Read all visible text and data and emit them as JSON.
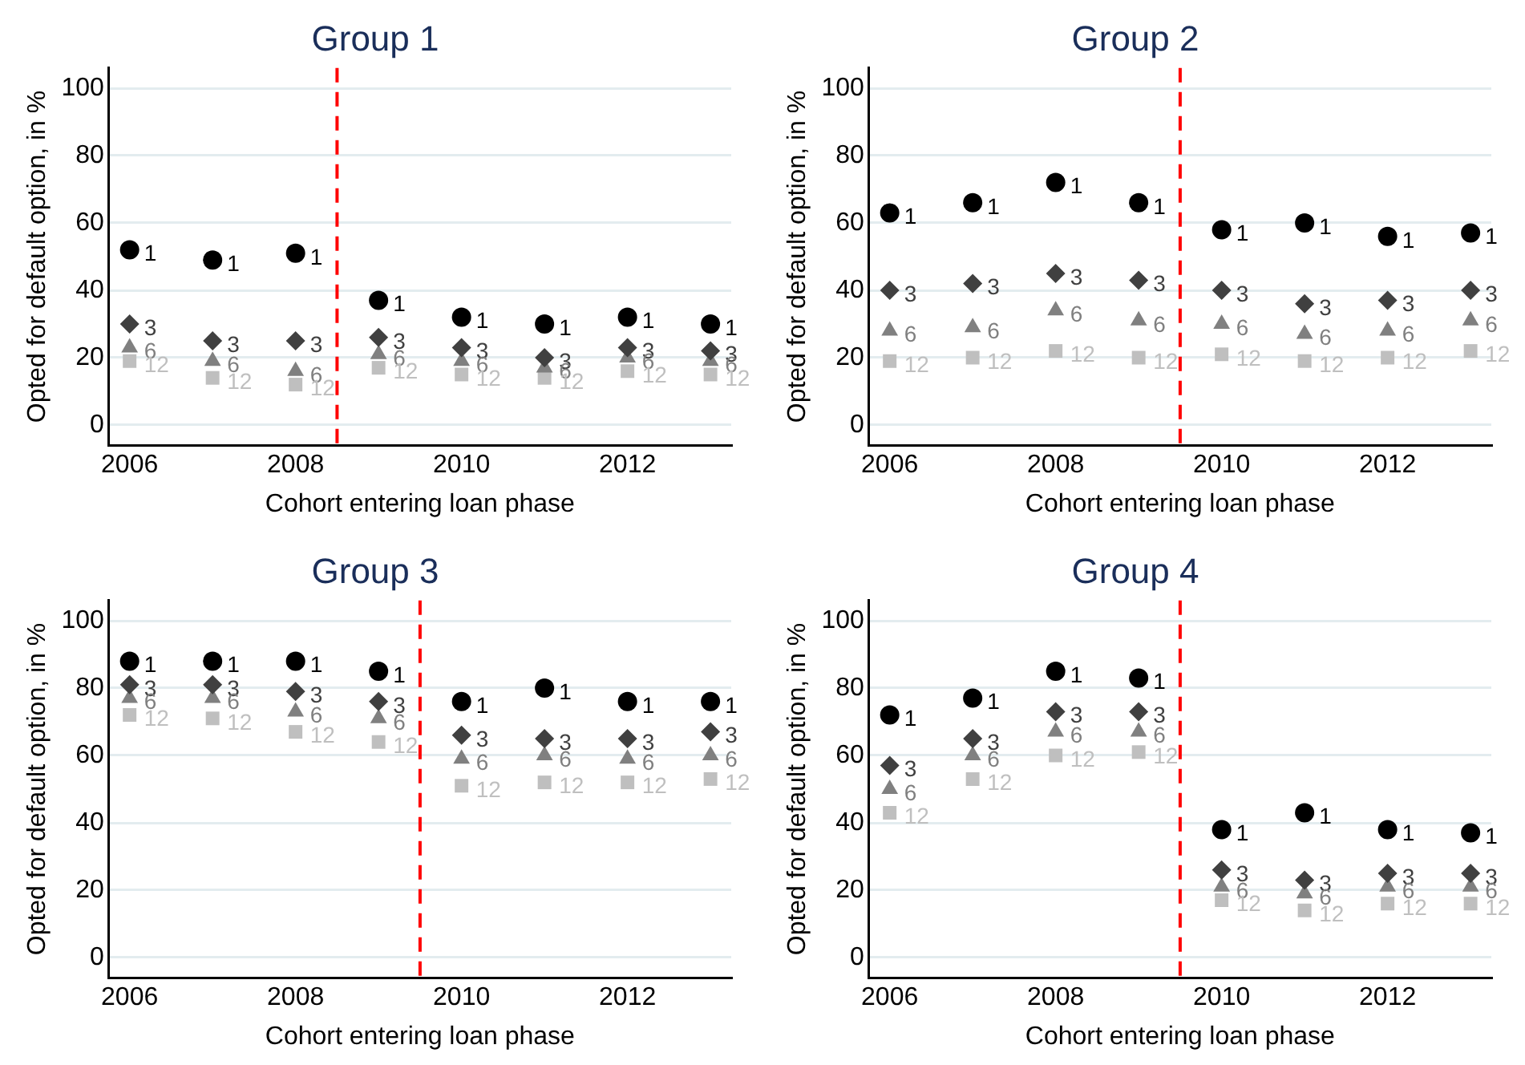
{
  "chart_data": [
    {
      "type": "scatter",
      "title": "Group 1",
      "xlabel": "Cohort entering loan phase",
      "ylabel": "Opted for default option, in %",
      "x": [
        2006,
        2007,
        2008,
        2009,
        2010,
        2011,
        2012,
        2013
      ],
      "xlim": [
        2005.75,
        2013.25
      ],
      "xticks": [
        2006,
        2008,
        2010,
        2012
      ],
      "ylim": [
        -6,
        106
      ],
      "yticks": [
        0,
        20,
        40,
        60,
        80,
        100
      ],
      "grid": "y",
      "legend": false,
      "ref_lines": [
        {
          "axis": "x",
          "value": 2008.5,
          "color": "#ff0000",
          "line_style": "dashed"
        }
      ],
      "series": [
        {
          "name": "1",
          "color": "#000000",
          "marker": "circle",
          "values": [
            52,
            49,
            51,
            37,
            32,
            30,
            32,
            30
          ]
        },
        {
          "name": "3",
          "color": "#404040",
          "marker": "diamond",
          "values": [
            30,
            25,
            25,
            26,
            23,
            20,
            23,
            22
          ]
        },
        {
          "name": "6",
          "color": "#808080",
          "marker": "triangle",
          "values": [
            23,
            19,
            16,
            21,
            19,
            17,
            20,
            19
          ]
        },
        {
          "name": "12",
          "color": "#bfbfbf",
          "marker": "square",
          "values": [
            19,
            14,
            12,
            17,
            15,
            14,
            16,
            15
          ]
        }
      ]
    },
    {
      "type": "scatter",
      "title": "Group 2",
      "xlabel": "Cohort entering loan phase",
      "ylabel": "Opted for default option, in %",
      "x": [
        2006,
        2007,
        2008,
        2009,
        2010,
        2011,
        2012,
        2013
      ],
      "xlim": [
        2005.75,
        2013.25
      ],
      "xticks": [
        2006,
        2008,
        2010,
        2012
      ],
      "ylim": [
        -6,
        106
      ],
      "yticks": [
        0,
        20,
        40,
        60,
        80,
        100
      ],
      "grid": "y",
      "legend": false,
      "ref_lines": [
        {
          "axis": "x",
          "value": 2009.5,
          "color": "#ff0000",
          "line_style": "dashed"
        }
      ],
      "series": [
        {
          "name": "1",
          "color": "#000000",
          "marker": "circle",
          "values": [
            63,
            66,
            72,
            66,
            58,
            60,
            56,
            57
          ]
        },
        {
          "name": "3",
          "color": "#404040",
          "marker": "diamond",
          "values": [
            40,
            42,
            45,
            43,
            40,
            36,
            37,
            40
          ]
        },
        {
          "name": "6",
          "color": "#808080",
          "marker": "triangle",
          "values": [
            28,
            29,
            34,
            31,
            30,
            27,
            28,
            31
          ]
        },
        {
          "name": "12",
          "color": "#bfbfbf",
          "marker": "square",
          "values": [
            19,
            20,
            22,
            20,
            21,
            19,
            20,
            22
          ]
        }
      ]
    },
    {
      "type": "scatter",
      "title": "Group 3",
      "xlabel": "Cohort entering loan phase",
      "ylabel": "Opted for default option, in %",
      "x": [
        2006,
        2007,
        2008,
        2009,
        2010,
        2011,
        2012,
        2013
      ],
      "xlim": [
        2005.75,
        2013.25
      ],
      "xticks": [
        2006,
        2008,
        2010,
        2012
      ],
      "ylim": [
        -6,
        106
      ],
      "yticks": [
        0,
        20,
        40,
        60,
        80,
        100
      ],
      "grid": "y",
      "legend": false,
      "ref_lines": [
        {
          "axis": "x",
          "value": 2009.5,
          "color": "#ff0000",
          "line_style": "dashed"
        }
      ],
      "series": [
        {
          "name": "1",
          "color": "#000000",
          "marker": "circle",
          "values": [
            88,
            88,
            88,
            85,
            76,
            80,
            76,
            76
          ]
        },
        {
          "name": "3",
          "color": "#404040",
          "marker": "diamond",
          "values": [
            81,
            81,
            79,
            76,
            66,
            65,
            65,
            67
          ]
        },
        {
          "name": "6",
          "color": "#808080",
          "marker": "triangle",
          "values": [
            77,
            77,
            73,
            71,
            59,
            60,
            59,
            60
          ]
        },
        {
          "name": "12",
          "color": "#bfbfbf",
          "marker": "square",
          "values": [
            72,
            71,
            67,
            64,
            51,
            52,
            52,
            53
          ]
        }
      ]
    },
    {
      "type": "scatter",
      "title": "Group 4",
      "xlabel": "Cohort entering loan phase",
      "ylabel": "Opted for default option, in %",
      "x": [
        2006,
        2007,
        2008,
        2009,
        2010,
        2011,
        2012,
        2013
      ],
      "xlim": [
        2005.75,
        2013.25
      ],
      "xticks": [
        2006,
        2008,
        2010,
        2012
      ],
      "ylim": [
        -6,
        106
      ],
      "yticks": [
        0,
        20,
        40,
        60,
        80,
        100
      ],
      "grid": "y",
      "legend": false,
      "ref_lines": [
        {
          "axis": "x",
          "value": 2009.5,
          "color": "#ff0000",
          "line_style": "dashed"
        }
      ],
      "series": [
        {
          "name": "1",
          "color": "#000000",
          "marker": "circle",
          "values": [
            72,
            77,
            85,
            83,
            38,
            43,
            38,
            37
          ]
        },
        {
          "name": "3",
          "color": "#404040",
          "marker": "diamond",
          "values": [
            57,
            65,
            73,
            73,
            26,
            23,
            25,
            25
          ]
        },
        {
          "name": "6",
          "color": "#808080",
          "marker": "triangle",
          "values": [
            50,
            60,
            67,
            67,
            21,
            19,
            21,
            21
          ]
        },
        {
          "name": "12",
          "color": "#bfbfbf",
          "marker": "square",
          "values": [
            43,
            53,
            60,
            61,
            17,
            14,
            16,
            16
          ]
        }
      ]
    }
  ]
}
